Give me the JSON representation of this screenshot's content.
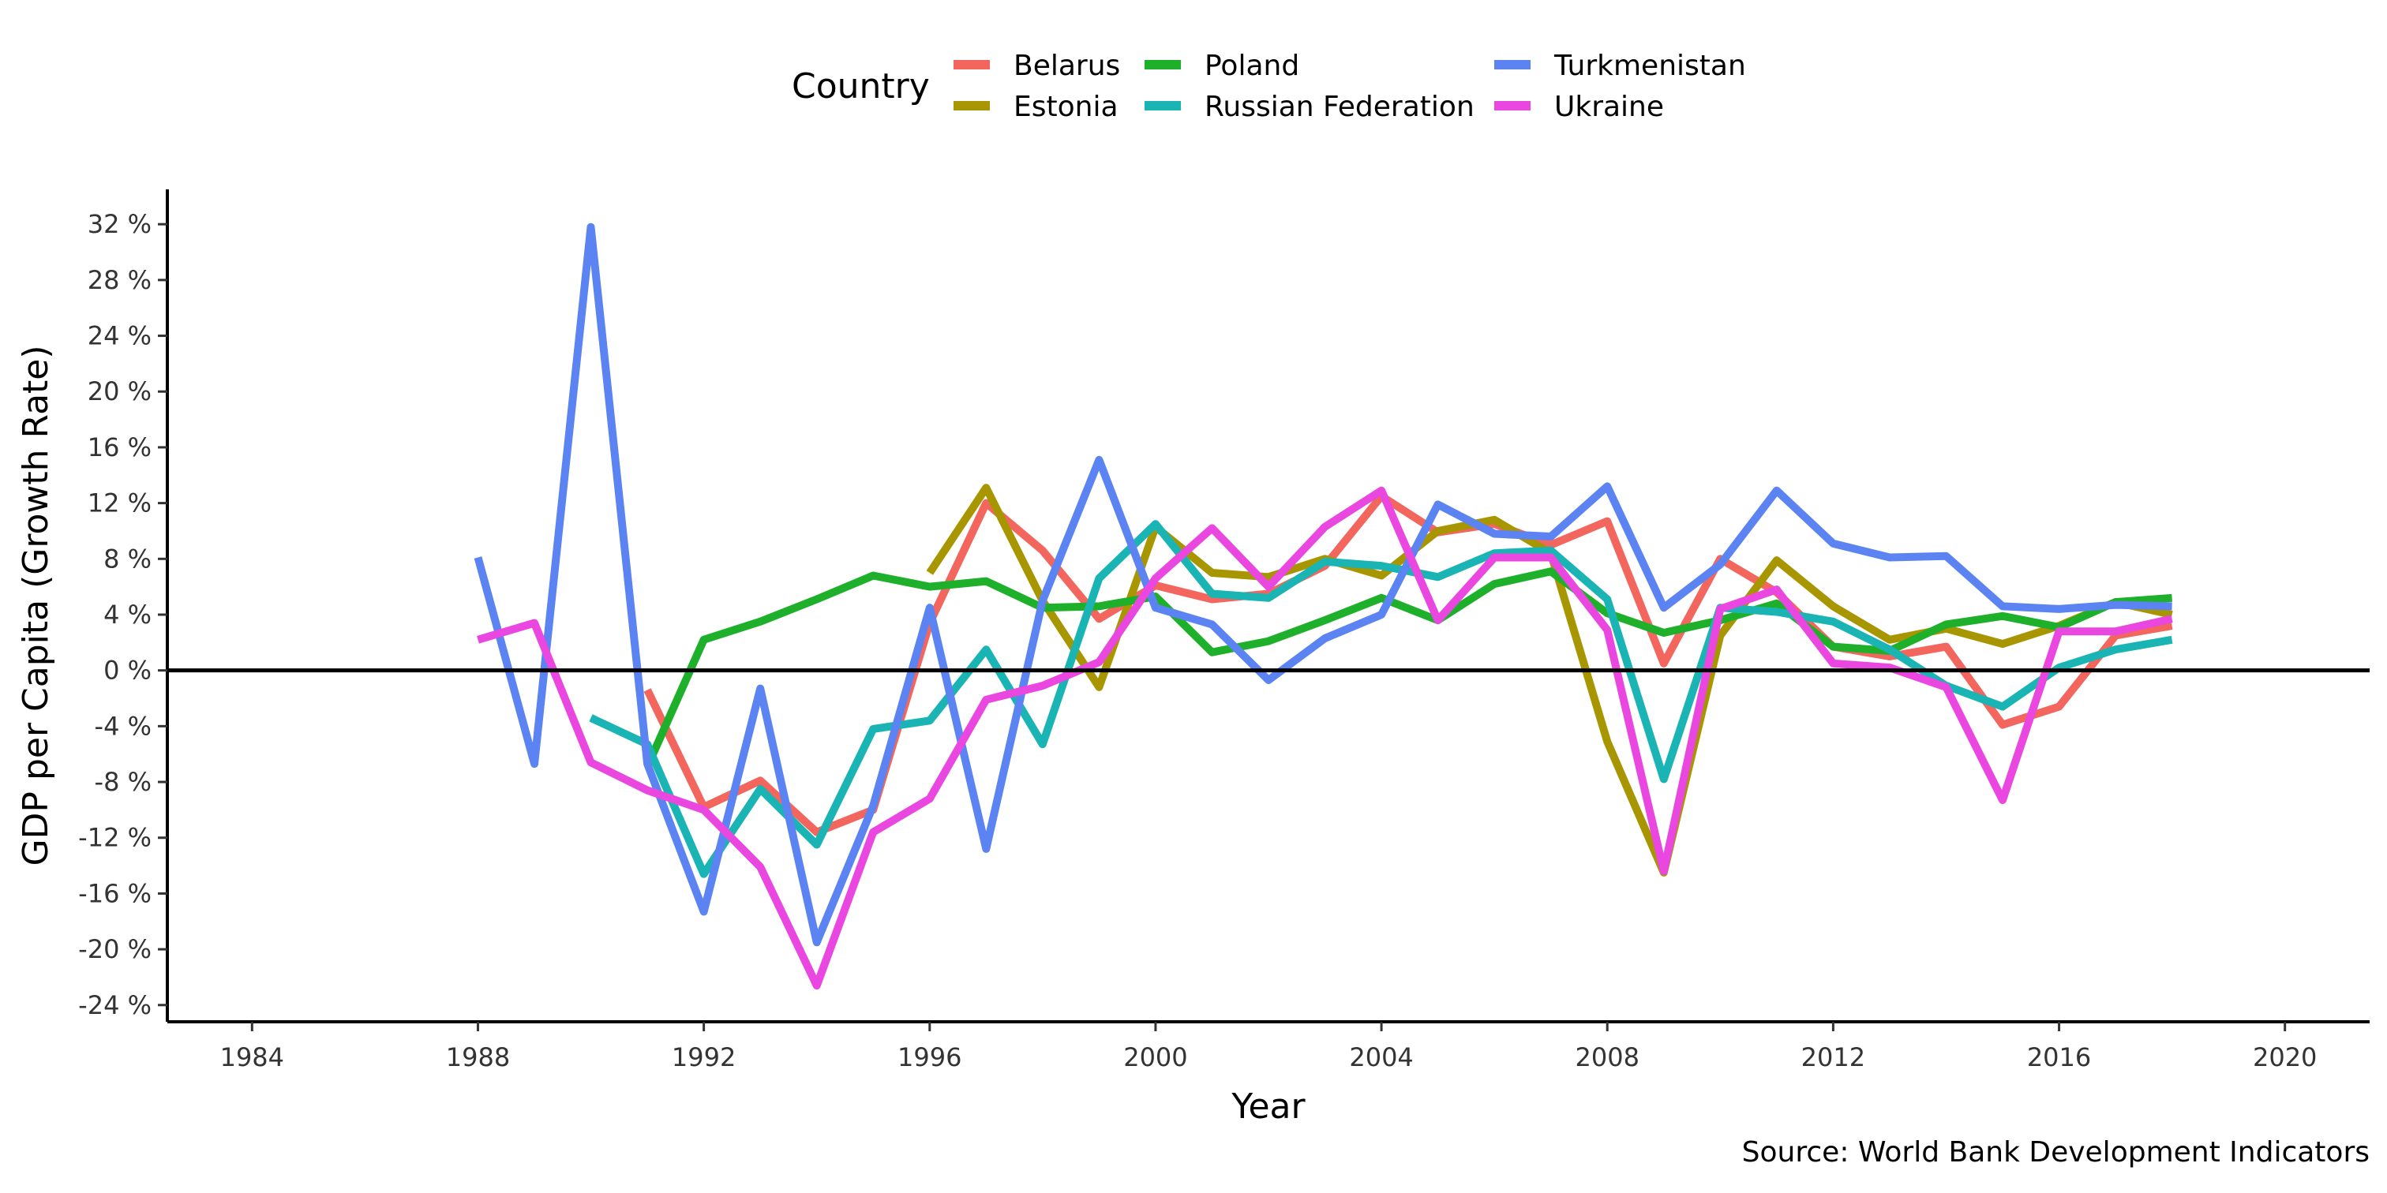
{
  "chart_data": {
    "type": "line",
    "xlabel": "Year",
    "ylabel": "GDP per Capita (Growth Rate)",
    "caption": "Source: World Bank Development Indicators",
    "legend_title": "Country",
    "legend_position": "top",
    "xlim": [
      1982.5,
      2021.5
    ],
    "ylim": [
      -25.2,
      34.5
    ],
    "x_ticks": [
      1984,
      1988,
      1992,
      1996,
      2000,
      2004,
      2008,
      2012,
      2016,
      2020
    ],
    "x_tick_labels": [
      "1984",
      "1988",
      "1992",
      "1996",
      "2000",
      "2004",
      "2008",
      "2012",
      "2016",
      "2020"
    ],
    "y_ticks": [
      -24,
      -20,
      -16,
      -12,
      -8,
      -4,
      0,
      4,
      8,
      12,
      16,
      20,
      24,
      28,
      32
    ],
    "y_tick_labels": [
      "-24 %",
      "-20 %",
      "-16 %",
      "-12 %",
      "-8 %",
      "-4 %",
      "0 %",
      "4 %",
      "8 %",
      "12 %",
      "16 %",
      "20 %",
      "24 %",
      "28 %",
      "32 %"
    ],
    "zero_line": 0,
    "grid": false,
    "series": [
      {
        "name": "Belarus",
        "color": "#F2665E",
        "x": [
          1991,
          1992,
          1993,
          1994,
          1995,
          1996,
          1997,
          1998,
          1999,
          2000,
          2001,
          2002,
          2003,
          2004,
          2005,
          2006,
          2007,
          2008,
          2009,
          2010,
          2011,
          2012,
          2013,
          2014,
          2015,
          2016,
          2017,
          2018
        ],
        "y": [
          -1.4,
          -9.8,
          -7.9,
          -11.6,
          -10.0,
          3.4,
          12.0,
          8.6,
          3.7,
          6.1,
          5.1,
          5.5,
          7.5,
          12.5,
          9.9,
          10.5,
          9.0,
          10.7,
          0.5,
          8.0,
          5.6,
          1.7,
          1.0,
          1.7,
          -3.9,
          -2.6,
          2.5,
          3.2
        ]
      },
      {
        "name": "Estonia",
        "color": "#A89600",
        "x": [
          1996,
          1997,
          1998,
          1999,
          2000,
          2001,
          2002,
          2003,
          2004,
          2005,
          2006,
          2007,
          2008,
          2009,
          2010,
          2011,
          2012,
          2013,
          2014,
          2015,
          2016,
          2017,
          2018
        ],
        "y": [
          7.0,
          13.1,
          5.0,
          -1.2,
          10.3,
          7.0,
          6.7,
          8.0,
          6.8,
          10.0,
          10.8,
          8.4,
          -5.1,
          -14.5,
          2.5,
          7.9,
          4.6,
          2.2,
          3.0,
          1.9,
          3.2,
          4.9,
          4.0
        ]
      },
      {
        "name": "Poland",
        "color": "#1FB02B",
        "x": [
          1991,
          1992,
          1993,
          1994,
          1995,
          1996,
          1997,
          1998,
          1999,
          2000,
          2001,
          2002,
          2003,
          2004,
          2005,
          2006,
          2007,
          2008,
          2009,
          2010,
          2011,
          2012,
          2013,
          2014,
          2015,
          2016,
          2017,
          2018
        ],
        "y": [
          -6.9,
          2.2,
          3.5,
          5.1,
          6.8,
          6.0,
          6.4,
          4.5,
          4.6,
          5.3,
          1.3,
          2.1,
          3.6,
          5.2,
          3.6,
          6.2,
          7.1,
          4.1,
          2.7,
          3.6,
          4.8,
          1.7,
          1.4,
          3.3,
          3.9,
          3.1,
          4.9,
          5.2
        ]
      },
      {
        "name": "Russian Federation",
        "color": "#1BB4B4",
        "x": [
          1990,
          1991,
          1992,
          1993,
          1994,
          1995,
          1996,
          1997,
          1998,
          1999,
          2000,
          2001,
          2002,
          2003,
          2004,
          2005,
          2006,
          2007,
          2008,
          2009,
          2010,
          2011,
          2012,
          2013,
          2014,
          2015,
          2016,
          2017,
          2018
        ],
        "y": [
          -3.4,
          -5.3,
          -14.6,
          -8.5,
          -12.5,
          -4.2,
          -3.6,
          1.5,
          -5.3,
          6.6,
          10.5,
          5.5,
          5.2,
          7.8,
          7.5,
          6.7,
          8.4,
          8.6,
          5.1,
          -7.8,
          4.5,
          4.2,
          3.5,
          1.5,
          -1.1,
          -2.6,
          0.2,
          1.5,
          2.2
        ]
      },
      {
        "name": "Turkmenistan",
        "color": "#5B84F2",
        "x": [
          1988,
          1989,
          1990,
          1991,
          1992,
          1993,
          1994,
          1995,
          1996,
          1997,
          1998,
          1999,
          2000,
          2001,
          2002,
          2003,
          2004,
          2005,
          2006,
          2007,
          2008,
          2009,
          2010,
          2011,
          2012,
          2013,
          2014,
          2015,
          2016,
          2017,
          2018
        ],
        "y": [
          8.1,
          -6.7,
          31.8,
          -6.7,
          -17.3,
          -1.3,
          -19.5,
          -9.7,
          4.5,
          -12.8,
          5.0,
          15.1,
          4.5,
          3.3,
          -0.7,
          2.3,
          4.0,
          11.9,
          9.8,
          9.6,
          13.2,
          4.5,
          7.6,
          12.9,
          9.1,
          8.1,
          8.2,
          4.6,
          4.4,
          4.7,
          4.6
        ]
      },
      {
        "name": "Ukraine",
        "color": "#EA46E0",
        "x": [
          1988,
          1989,
          1990,
          1991,
          1992,
          1993,
          1994,
          1995,
          1996,
          1997,
          1998,
          1999,
          2000,
          2001,
          2002,
          2003,
          2004,
          2005,
          2006,
          2007,
          2008,
          2009,
          2010,
          2011,
          2012,
          2013,
          2014,
          2015,
          2016,
          2017,
          2018
        ],
        "y": [
          2.2,
          3.4,
          -6.6,
          -8.6,
          -10.0,
          -14.1,
          -22.6,
          -11.6,
          -9.2,
          -2.1,
          -1.1,
          0.6,
          6.6,
          10.2,
          6.0,
          10.3,
          12.9,
          3.6,
          8.1,
          8.1,
          2.9,
          -14.4,
          4.4,
          5.8,
          0.5,
          0.2,
          -1.2,
          -9.3,
          2.8,
          2.8,
          3.7
        ]
      }
    ]
  }
}
